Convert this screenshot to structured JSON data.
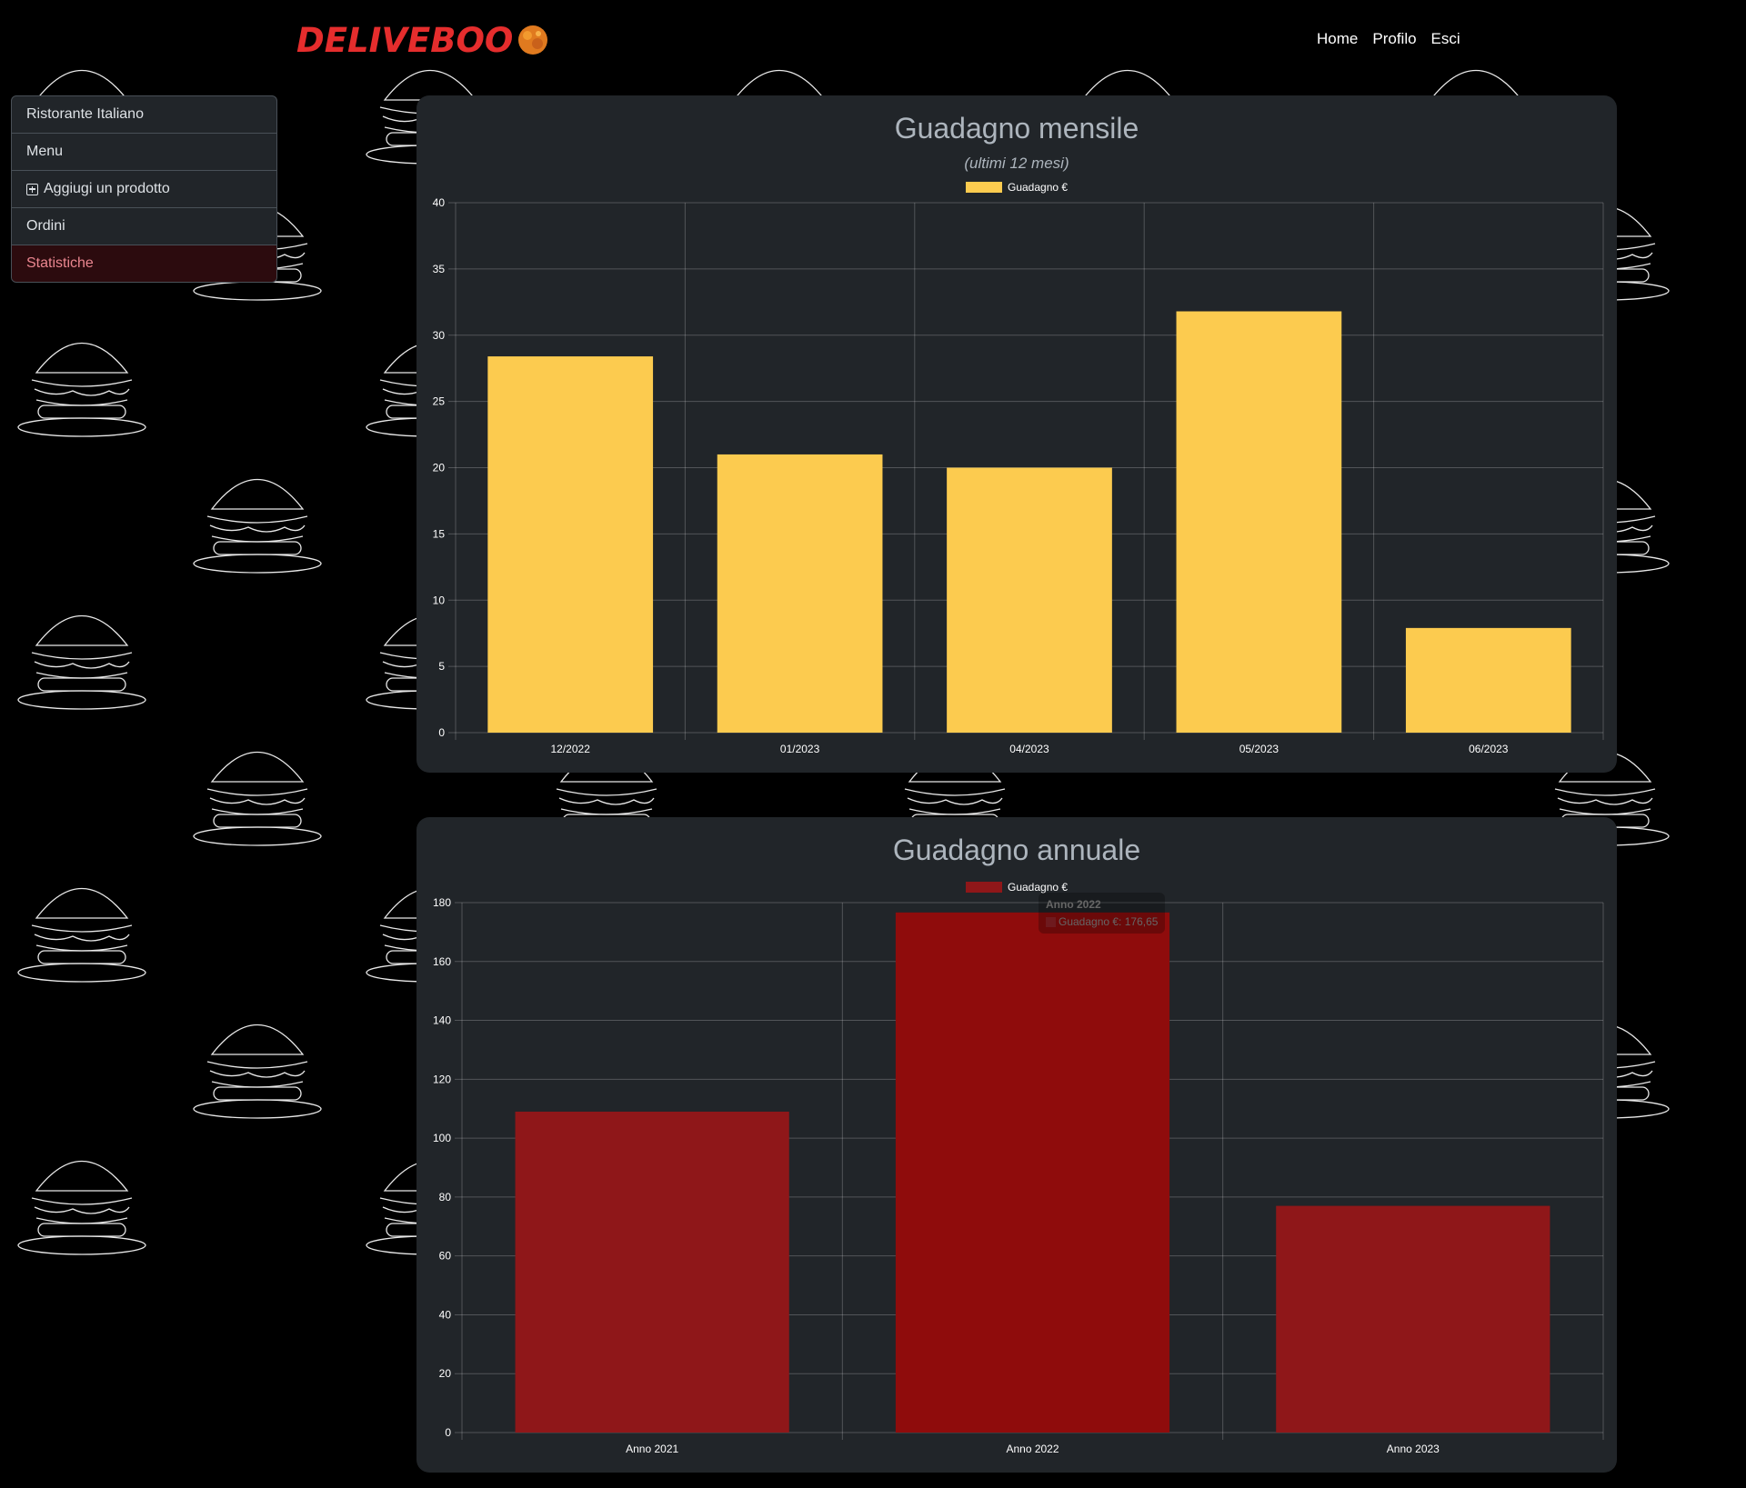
{
  "brand": {
    "logo_text": "DELIVEBOO"
  },
  "nav": {
    "links": [
      "Home",
      "Profilo",
      "Esci"
    ]
  },
  "sidebar": {
    "items": [
      {
        "label": "Ristorante Italiano",
        "icon": null,
        "active": false
      },
      {
        "label": "Menu",
        "icon": null,
        "active": false
      },
      {
        "label": "Aggiugi un prodotto",
        "icon": "plus-square-icon",
        "active": false
      },
      {
        "label": "Ordini",
        "icon": null,
        "active": false
      },
      {
        "label": "Statistiche",
        "icon": null,
        "active": true
      }
    ]
  },
  "monthly": {
    "title": "Guadagno mensile",
    "subtitle": "(ultimi 12 mesi)",
    "legend": "Guadagno €"
  },
  "annual": {
    "title": "Guadagno annuale",
    "legend": "Guadagno €",
    "tooltip": {
      "title": "Anno 2022",
      "label": "Guadagno €: 176,65"
    }
  },
  "colors": {
    "background": "#000000",
    "card": "#212529",
    "monthly_bar": "#fccb4f",
    "annual_bar": "#8f1719",
    "annual_bar_hover": "#8f0c0c",
    "active_item_bg": "#2c0b0e",
    "active_item_text": "#ea868f",
    "brand_red": "#e52d2d"
  },
  "chart_data": [
    {
      "type": "bar",
      "title": "Guadagno mensile",
      "subtitle": "(ultimi 12 mesi)",
      "categories": [
        "12/2022",
        "01/2023",
        "04/2023",
        "05/2023",
        "06/2023"
      ],
      "series": [
        {
          "name": "Guadagno €",
          "values": [
            28.4,
            21,
            20,
            31.8,
            7.9
          ]
        }
      ],
      "ylim": [
        0,
        40
      ],
      "yticks": [
        0,
        5,
        10,
        15,
        20,
        25,
        30,
        35,
        40
      ],
      "grid": true,
      "legend": "top-center"
    },
    {
      "type": "bar",
      "title": "Guadagno annuale",
      "categories": [
        "Anno 2021",
        "Anno 2022",
        "Anno 2023"
      ],
      "series": [
        {
          "name": "Guadagno €",
          "values": [
            109,
            176.65,
            77
          ]
        }
      ],
      "ylim": [
        0,
        180
      ],
      "yticks": [
        0,
        20,
        40,
        60,
        80,
        100,
        120,
        140,
        160,
        180
      ],
      "grid": true,
      "legend": "top-center"
    }
  ]
}
